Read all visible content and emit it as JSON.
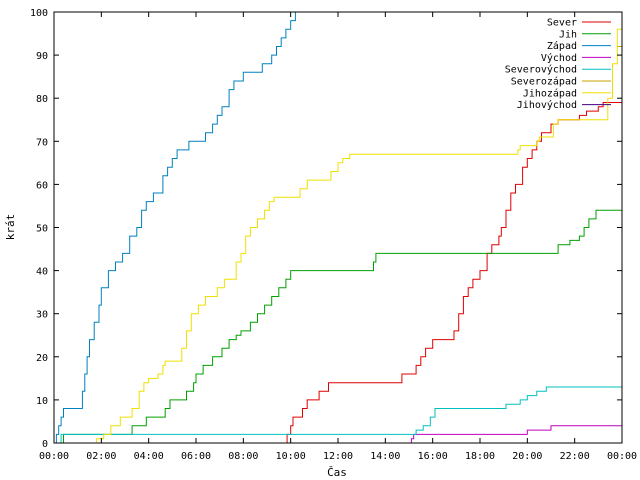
{
  "chart_data": {
    "type": "line",
    "title": "",
    "xlabel": "Čas",
    "ylabel": "krát",
    "xlim": [
      0,
      24
    ],
    "ylim": [
      0,
      100
    ],
    "x_tick_labels": [
      "00:00",
      "02:00",
      "04:00",
      "06:00",
      "08:00",
      "10:00",
      "12:00",
      "14:00",
      "16:00",
      "18:00",
      "20:00",
      "22:00",
      "00:00"
    ],
    "y_tick_labels": [
      "0",
      "10",
      "20",
      "30",
      "40",
      "50",
      "60",
      "70",
      "80",
      "90",
      "100"
    ],
    "grid": false,
    "legend_position": "top-right",
    "series": [
      {
        "name": "Sever",
        "color": "#e00000",
        "points": [
          [
            9.8,
            0
          ],
          [
            9.85,
            2
          ],
          [
            10.0,
            4
          ],
          [
            10.1,
            6
          ],
          [
            10.5,
            8
          ],
          [
            10.7,
            10
          ],
          [
            11.2,
            12
          ],
          [
            11.6,
            14
          ],
          [
            14.5,
            14
          ],
          [
            14.7,
            16
          ],
          [
            14.9,
            16
          ],
          [
            15.3,
            18
          ],
          [
            15.5,
            20
          ],
          [
            15.7,
            22
          ],
          [
            16.0,
            24
          ],
          [
            16.6,
            24
          ],
          [
            16.9,
            26
          ],
          [
            17.1,
            30
          ],
          [
            17.3,
            34
          ],
          [
            17.5,
            36
          ],
          [
            17.7,
            38
          ],
          [
            18.0,
            40
          ],
          [
            18.3,
            44
          ],
          [
            18.5,
            46
          ],
          [
            18.8,
            48
          ],
          [
            18.9,
            50
          ],
          [
            19.1,
            54
          ],
          [
            19.3,
            58
          ],
          [
            19.5,
            60
          ],
          [
            19.8,
            64
          ],
          [
            20.0,
            66
          ],
          [
            20.2,
            68
          ],
          [
            20.4,
            70
          ],
          [
            20.6,
            72
          ],
          [
            21.0,
            74
          ],
          [
            21.3,
            75
          ],
          [
            22.2,
            76
          ],
          [
            22.5,
            77
          ],
          [
            23.0,
            78
          ],
          [
            23.2,
            79
          ],
          [
            24.0,
            79
          ]
        ]
      },
      {
        "name": "Jih",
        "color": "#00a000",
        "points": [
          [
            0.3,
            0
          ],
          [
            0.4,
            2
          ],
          [
            3.2,
            2
          ],
          [
            3.3,
            4
          ],
          [
            3.9,
            6
          ],
          [
            4.7,
            8
          ],
          [
            4.9,
            10
          ],
          [
            5.6,
            12
          ],
          [
            5.9,
            14
          ],
          [
            6.0,
            16
          ],
          [
            6.3,
            18
          ],
          [
            6.7,
            20
          ],
          [
            7.1,
            22
          ],
          [
            7.4,
            24
          ],
          [
            7.7,
            25
          ],
          [
            7.9,
            26
          ],
          [
            8.3,
            28
          ],
          [
            8.6,
            30
          ],
          [
            8.9,
            32
          ],
          [
            9.2,
            34
          ],
          [
            9.5,
            36
          ],
          [
            9.8,
            38
          ],
          [
            10.0,
            40
          ],
          [
            13.4,
            40
          ],
          [
            13.5,
            42
          ],
          [
            13.6,
            44
          ],
          [
            21.2,
            44
          ],
          [
            21.3,
            46
          ],
          [
            21.8,
            47
          ],
          [
            22.2,
            48
          ],
          [
            22.4,
            50
          ],
          [
            22.6,
            52
          ],
          [
            22.9,
            54
          ],
          [
            24.0,
            54
          ]
        ]
      },
      {
        "name": "Západ",
        "color": "#0080c0",
        "points": [
          [
            0.0,
            0
          ],
          [
            0.1,
            2
          ],
          [
            0.2,
            4
          ],
          [
            0.3,
            6
          ],
          [
            0.4,
            8
          ],
          [
            1.0,
            8
          ],
          [
            1.2,
            12
          ],
          [
            1.3,
            16
          ],
          [
            1.4,
            20
          ],
          [
            1.5,
            24
          ],
          [
            1.7,
            28
          ],
          [
            1.9,
            32
          ],
          [
            2.0,
            36
          ],
          [
            2.3,
            40
          ],
          [
            2.6,
            42
          ],
          [
            2.9,
            44
          ],
          [
            3.2,
            48
          ],
          [
            3.5,
            50
          ],
          [
            3.7,
            54
          ],
          [
            3.9,
            56
          ],
          [
            4.2,
            58
          ],
          [
            4.6,
            62
          ],
          [
            4.8,
            64
          ],
          [
            5.0,
            66
          ],
          [
            5.2,
            68
          ],
          [
            5.7,
            70
          ],
          [
            6.2,
            70
          ],
          [
            6.4,
            72
          ],
          [
            6.7,
            74
          ],
          [
            6.9,
            76
          ],
          [
            7.1,
            78
          ],
          [
            7.4,
            82
          ],
          [
            7.6,
            84
          ],
          [
            8.0,
            86
          ],
          [
            8.6,
            86
          ],
          [
            8.8,
            88
          ],
          [
            9.2,
            90
          ],
          [
            9.4,
            92
          ],
          [
            9.6,
            94
          ],
          [
            9.8,
            96
          ],
          [
            10.0,
            98
          ],
          [
            10.2,
            100
          ]
        ]
      },
      {
        "name": "Východ",
        "color": "#c000c0",
        "points": [
          [
            15.0,
            0
          ],
          [
            15.1,
            1
          ],
          [
            15.2,
            2
          ],
          [
            19.6,
            2
          ],
          [
            20.0,
            3
          ],
          [
            20.5,
            3
          ],
          [
            21.0,
            4
          ],
          [
            24.0,
            4
          ]
        ]
      },
      {
        "name": "Severovýchod",
        "color": "#00c0c0",
        "points": [
          [
            0.2,
            0
          ],
          [
            0.3,
            2
          ],
          [
            15.0,
            2
          ],
          [
            15.3,
            3
          ],
          [
            15.6,
            4
          ],
          [
            15.9,
            6
          ],
          [
            16.1,
            8
          ],
          [
            18.0,
            8
          ],
          [
            19.1,
            9
          ],
          [
            19.7,
            10
          ],
          [
            20.0,
            11
          ],
          [
            20.4,
            12
          ],
          [
            20.8,
            13
          ],
          [
            24.0,
            13
          ]
        ]
      },
      {
        "name": "Severozápad",
        "color": "#c8a000",
        "points": [
          [
            23.8,
            92
          ],
          [
            24.0,
            100
          ]
        ]
      },
      {
        "name": "Jihozápad",
        "color": "#f0e000",
        "points": [
          [
            1.7,
            0
          ],
          [
            1.8,
            1
          ],
          [
            2.1,
            2
          ],
          [
            2.4,
            4
          ],
          [
            2.8,
            6
          ],
          [
            3.3,
            8
          ],
          [
            3.6,
            12
          ],
          [
            3.8,
            14
          ],
          [
            4.0,
            15
          ],
          [
            4.4,
            16
          ],
          [
            4.6,
            18
          ],
          [
            4.7,
            19
          ],
          [
            5.3,
            19
          ],
          [
            5.4,
            22
          ],
          [
            5.6,
            26
          ],
          [
            5.8,
            30
          ],
          [
            6.1,
            32
          ],
          [
            6.4,
            34
          ],
          [
            6.9,
            36
          ],
          [
            7.2,
            38
          ],
          [
            7.5,
            38
          ],
          [
            7.7,
            42
          ],
          [
            7.9,
            44
          ],
          [
            8.1,
            48
          ],
          [
            8.3,
            50
          ],
          [
            8.6,
            52
          ],
          [
            8.9,
            54
          ],
          [
            9.1,
            56
          ],
          [
            9.3,
            57
          ],
          [
            10.2,
            57
          ],
          [
            10.4,
            59
          ],
          [
            10.7,
            61
          ],
          [
            11.5,
            61
          ],
          [
            11.7,
            63
          ],
          [
            12.0,
            65
          ],
          [
            12.2,
            66
          ],
          [
            12.5,
            67
          ],
          [
            19.5,
            67
          ],
          [
            19.6,
            68
          ],
          [
            19.7,
            69
          ],
          [
            20.2,
            69
          ],
          [
            20.4,
            70
          ],
          [
            20.5,
            71
          ],
          [
            21.0,
            71
          ],
          [
            21.1,
            74
          ],
          [
            21.3,
            75
          ],
          [
            23.2,
            75
          ],
          [
            23.4,
            80
          ],
          [
            23.6,
            88
          ],
          [
            23.8,
            96
          ],
          [
            24.0,
            100
          ]
        ]
      },
      {
        "name": "Jihovýchod",
        "color": "#400080",
        "points": []
      }
    ]
  }
}
